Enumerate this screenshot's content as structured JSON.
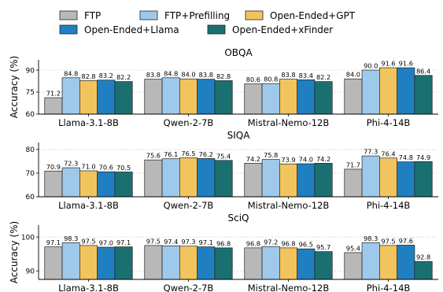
{
  "legend": {
    "items": [
      {
        "label": "FTP",
        "color": "#b8b8b8"
      },
      {
        "label": "FTP+Prefilling",
        "color": "#9ec9ea"
      },
      {
        "label": "Open-Ended+GPT",
        "color": "#f2c45e"
      },
      {
        "label": "Open-Ended+Llama",
        "color": "#1f7fc0"
      },
      {
        "label": "Open-Ended+xFinder",
        "color": "#1a7070"
      }
    ]
  },
  "chart_data": [
    {
      "type": "bar",
      "title": "OBQA",
      "ylabel": "Accuracy (%)",
      "categories": [
        "Llama-3.1-8B",
        "Qwen-2-7B",
        "Mistral-Nemo-12B",
        "Phi-4-14B"
      ],
      "series": [
        {
          "name": "FTP",
          "values": [
            71.2,
            83.8,
            80.6,
            84.0
          ]
        },
        {
          "name": "FTP+Prefilling",
          "values": [
            84.8,
            84.8,
            80.8,
            90.0
          ]
        },
        {
          "name": "Open-Ended+GPT",
          "values": [
            82.8,
            84.0,
            83.8,
            91.6
          ]
        },
        {
          "name": "Open-Ended+Llama",
          "values": [
            83.2,
            83.8,
            83.4,
            91.6
          ]
        },
        {
          "name": "Open-Ended+xFinder",
          "values": [
            82.2,
            82.8,
            82.2,
            86.4
          ]
        }
      ],
      "yticks": [
        60,
        75,
        90
      ],
      "ylim": [
        60,
        97
      ],
      "grid": true
    },
    {
      "type": "bar",
      "title": "SIQA",
      "ylabel": "",
      "categories": [
        "Llama-3.1-8B",
        "Qwen-2-7B",
        "Mistral-Nemo-12B",
        "Phi-4-14B"
      ],
      "series": [
        {
          "name": "FTP",
          "values": [
            70.9,
            75.6,
            74.2,
            71.7
          ]
        },
        {
          "name": "FTP+Prefilling",
          "values": [
            72.3,
            76.1,
            75.8,
            77.3
          ]
        },
        {
          "name": "Open-Ended+GPT",
          "values": [
            71.0,
            76.5,
            73.9,
            76.4
          ]
        },
        {
          "name": "Open-Ended+Llama",
          "values": [
            70.6,
            76.2,
            74.0,
            74.8
          ]
        },
        {
          "name": "Open-Ended+xFinder",
          "values": [
            70.5,
            75.4,
            74.2,
            74.9
          ]
        }
      ],
      "yticks": [
        60,
        70,
        80
      ],
      "ylim": [
        60,
        83
      ],
      "grid": true
    },
    {
      "type": "bar",
      "title": "SciQ",
      "ylabel": "Accuracy (%)",
      "categories": [
        "Llama-3.1-8B",
        "Qwen-2-7B",
        "Mistral-Nemo-12B",
        "Phi-4-14B"
      ],
      "series": [
        {
          "name": "FTP",
          "values": [
            97.1,
            97.5,
            96.8,
            95.4
          ]
        },
        {
          "name": "FTP+Prefilling",
          "values": [
            98.3,
            97.4,
            97.2,
            98.3
          ]
        },
        {
          "name": "Open-Ended+GPT",
          "values": [
            97.5,
            97.3,
            96.8,
            97.5
          ]
        },
        {
          "name": "Open-Ended+Llama",
          "values": [
            97.0,
            97.1,
            96.5,
            97.6
          ]
        },
        {
          "name": "Open-Ended+xFinder",
          "values": [
            97.1,
            96.8,
            95.7,
            92.8
          ]
        }
      ],
      "yticks": [
        90,
        100
      ],
      "ylim": [
        87.5,
        103.5
      ],
      "grid": true
    }
  ]
}
